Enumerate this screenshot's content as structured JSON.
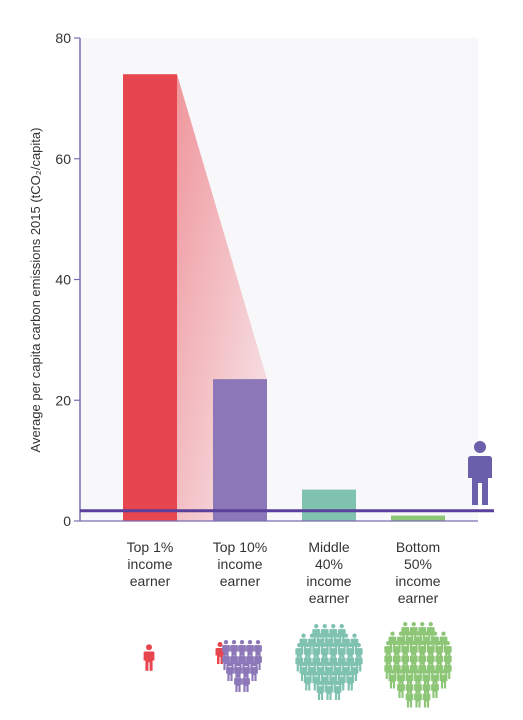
{
  "chart_data": {
    "type": "bar",
    "ylabel": "Average per capita carbon emissions 2015 (tCO₂/capita)",
    "ylim": [
      0,
      80
    ],
    "yticks": [
      0,
      20,
      40,
      60,
      80
    ],
    "categories": [
      [
        "Top 1%",
        "income",
        "earner"
      ],
      [
        "Top 10%",
        "income",
        "earner"
      ],
      [
        "Middle",
        "40%",
        "income",
        "earner"
      ],
      [
        "Bottom",
        "50%",
        "income",
        "earner"
      ]
    ],
    "values": [
      74,
      23.5,
      5.2,
      0.9
    ],
    "reference_line": 1.7,
    "grid": false,
    "legend": "none"
  },
  "colors": {
    "top1": "#e8464f",
    "top10": "#8c78b8",
    "middle40": "#7fc2b0",
    "bottom50": "#8cc676",
    "reference_line": "#5b3f9c",
    "axis": "#7b6db0",
    "person_icon": "#6a5fab"
  },
  "icons": [
    "person-icon",
    "people-group-icon",
    "crowd-icon",
    "crowd-icon"
  ]
}
